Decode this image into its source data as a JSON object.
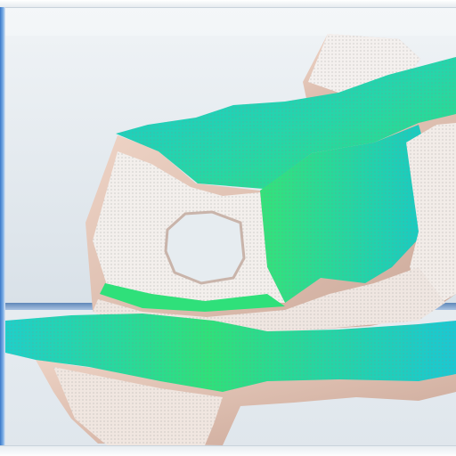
{
  "viewport": {
    "background": "#eef2f5",
    "accent_frame": "#3a78c8"
  },
  "model": {
    "surface_colors": {
      "cyan": "#19c9cf",
      "green": "#2fe07a",
      "rock": "#e8c8b8",
      "rock_shadow": "#c9a596",
      "dots": "#8a8a8a"
    }
  }
}
